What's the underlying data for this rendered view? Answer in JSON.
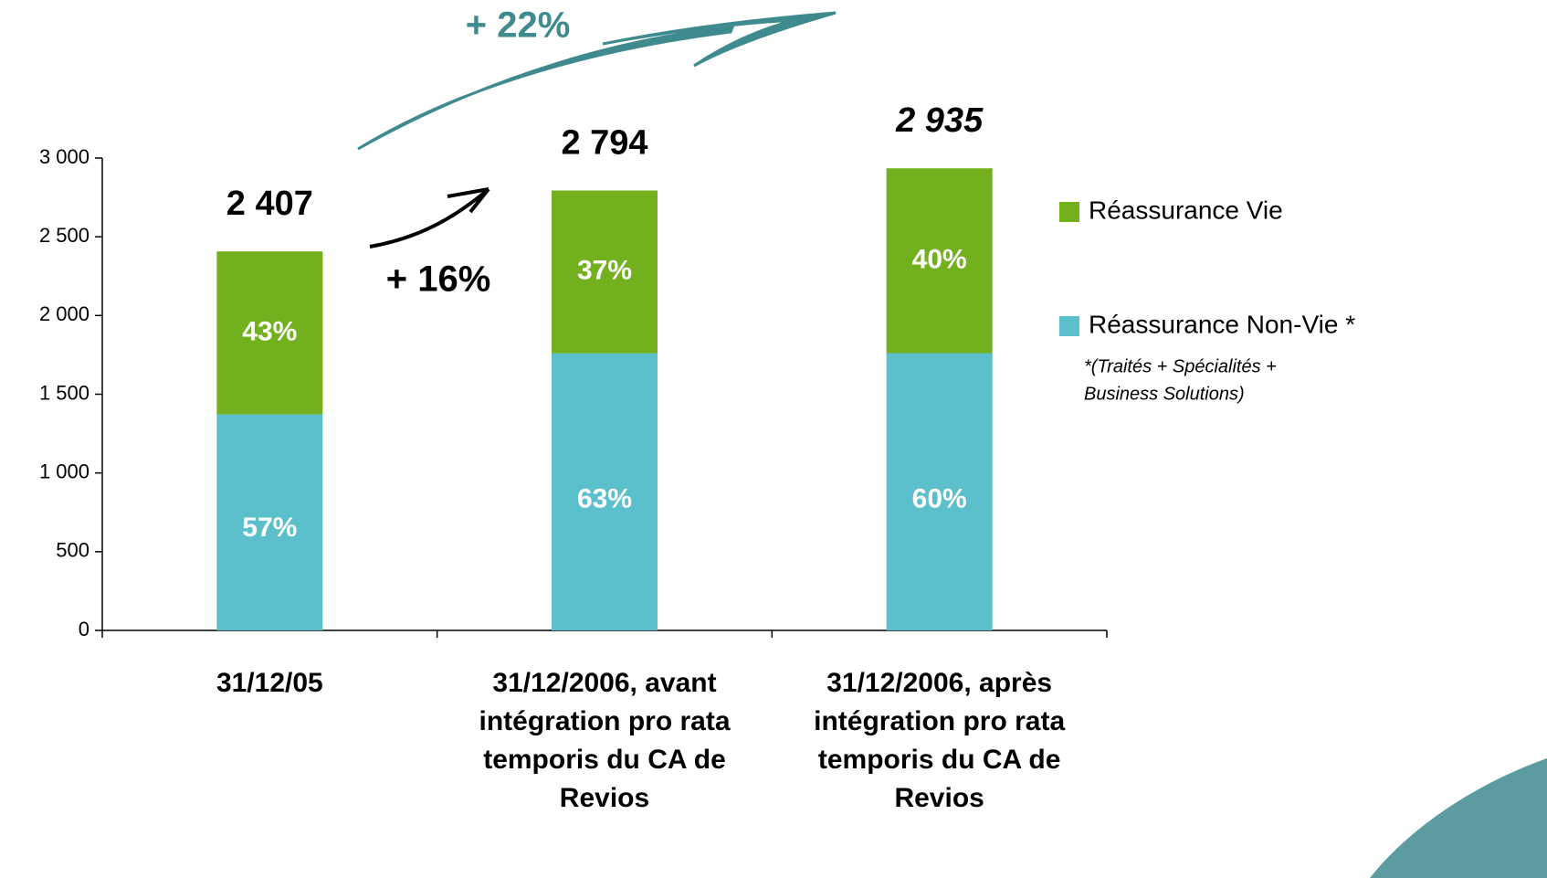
{
  "chart_data": {
    "type": "stacked_bar",
    "categories": [
      "31/12/05",
      "31/12/2006, avant intégration pro rata temporis du CA de Revios",
      "31/12/2006, après intégration pro rata temporis du CA de Revios"
    ],
    "series": [
      {
        "name": "Réassurance Non-Vie *",
        "color": "#5bbfcc",
        "values": [
          1372,
          1760,
          1761
        ],
        "value_labels": [
          "57%",
          "63%",
          "60%"
        ]
      },
      {
        "name": "Réassurance Vie",
        "color": "#72b01d",
        "values": [
          1035,
          1034,
          1174
        ],
        "value_labels": [
          "43%",
          "37%",
          "40%"
        ]
      }
    ],
    "total_labels": [
      "2 407",
      "2 794",
      "2 935"
    ],
    "legend_note": [
      "*(Traités + Spécialités +",
      "Business Solutions)"
    ],
    "annotations": [
      "+ 22%",
      "+ 16%"
    ],
    "ylim": [
      0,
      3000
    ],
    "yticks": [
      0,
      500,
      {
        "value": 1000,
        "label": "1 000"
      },
      {
        "value": 1500,
        "label": "1 500"
      },
      {
        "value": 2000,
        "label": "2 000"
      },
      {
        "value": 2500,
        "label": "2 500"
      },
      {
        "value": 3000,
        "label": "3 000"
      }
    ],
    "legend_position": "right"
  }
}
